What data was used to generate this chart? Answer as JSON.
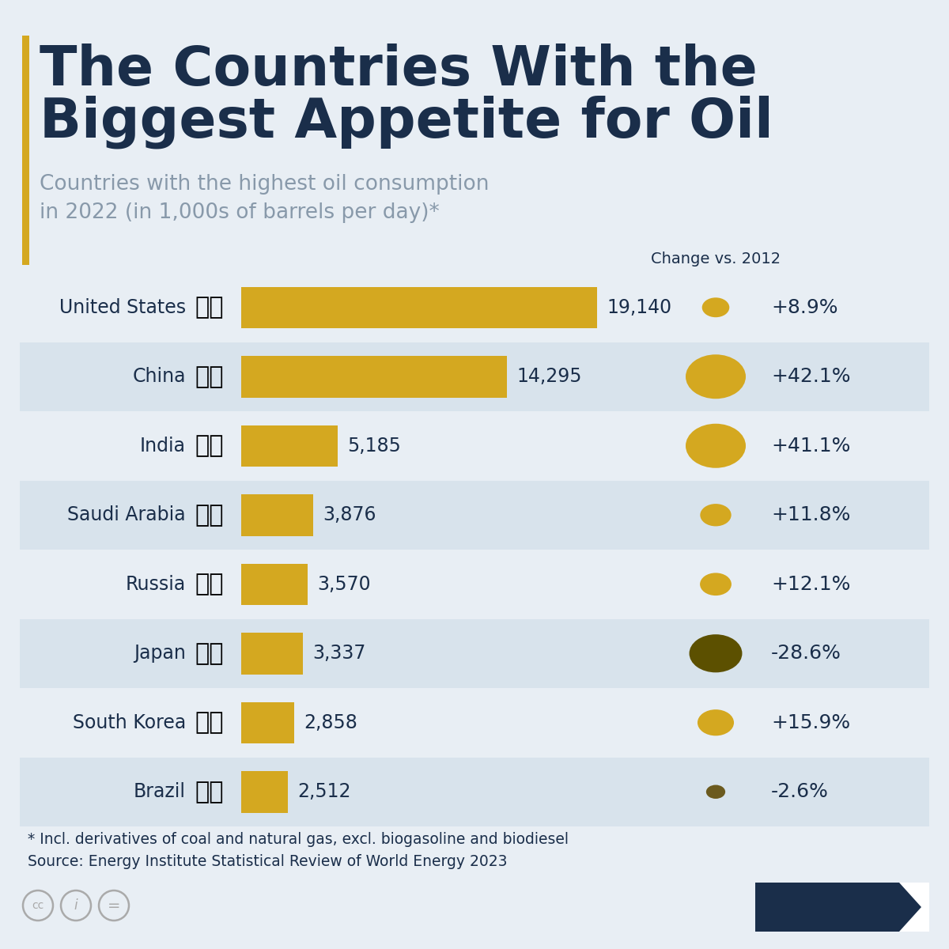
{
  "title_line1": "The Countries With the",
  "title_line2": "Biggest Appetite for Oil",
  "subtitle": "Countries with the highest oil consumption\nin 2022 (in 1,000s of barrels per day)*",
  "change_label": "Change vs. 2012",
  "countries": [
    "United States",
    "China",
    "India",
    "Saudi Arabia",
    "Russia",
    "Japan",
    "South Korea",
    "Brazil"
  ],
  "values": [
    19140,
    14295,
    5185,
    3876,
    3570,
    3337,
    2858,
    2512
  ],
  "value_labels": [
    "19,140",
    "14,295",
    "5,185",
    "3,876",
    "3,570",
    "3,337",
    "2,858",
    "2,512"
  ],
  "changes": [
    "+8.9%",
    "+42.1%",
    "+41.1%",
    "+11.8%",
    "+12.1%",
    "-28.6%",
    "+15.9%",
    "-2.6%"
  ],
  "change_values": [
    8.9,
    42.1,
    41.1,
    11.8,
    12.1,
    -28.6,
    15.9,
    -2.6
  ],
  "bar_color": "#D4A820",
  "positive_bubble_color": "#D4A820",
  "japan_bubble_color": "#5C5000",
  "brazil_bubble_color": "#6B5A1E",
  "background_color": "#E8EEF4",
  "row_alt_color": "#D8E3EC",
  "row_main_color": "#E8EEF4",
  "title_color": "#1a2e4a",
  "subtitle_color": "#8899aa",
  "text_color": "#1a2e4a",
  "footnote_line1": "* Incl. derivatives of coal and natural gas, excl. biogasoline and biodiesel",
  "footnote_line2": "Source: Energy Institute Statistical Review of World Energy 2023",
  "accent_bar_color": "#D4A820",
  "max_value": 19140,
  "bubble_scale": 0.85,
  "flag_emojis": [
    "🇺🇸",
    "🇨🇳",
    "🇮🇳",
    "🇸🇦",
    "🇷🇺",
    "🇯🇵",
    "🇰🇷",
    "🇧🇷"
  ]
}
